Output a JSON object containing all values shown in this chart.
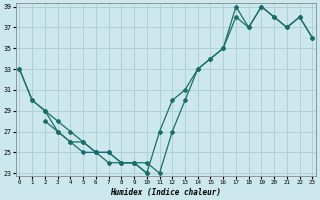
{
  "xlabel": "Humidex (Indice chaleur)",
  "bg_color": "#cce8ec",
  "grid_color": "#b0d0d8",
  "line_color": "#1a6e6a",
  "xlim": [
    0,
    23
  ],
  "ylim": [
    23,
    39
  ],
  "xticks": [
    0,
    1,
    2,
    3,
    4,
    5,
    6,
    7,
    8,
    9,
    10,
    11,
    12,
    13,
    14,
    15,
    16,
    17,
    18,
    19,
    20,
    21,
    22,
    23
  ],
  "yticks": [
    23,
    25,
    27,
    29,
    31,
    33,
    35,
    37,
    39
  ],
  "series": [
    {
      "x": [
        0,
        1,
        2,
        3,
        4,
        5,
        6,
        7,
        8,
        9,
        10
      ],
      "y": [
        33,
        30,
        29,
        27,
        26,
        25,
        25,
        24,
        24,
        24,
        23
      ]
    },
    {
      "x": [
        0,
        1,
        2,
        3,
        4,
        5,
        6,
        7,
        8,
        9,
        10,
        11,
        12,
        13,
        14,
        15,
        16,
        17,
        18,
        19,
        20,
        21,
        22,
        23
      ],
      "y": [
        33,
        30,
        29,
        28,
        27,
        26,
        25,
        25,
        24,
        24,
        23,
        27,
        30,
        31,
        33,
        34,
        35,
        38,
        37,
        39,
        38,
        37,
        38,
        36
      ]
    },
    {
      "x": [
        2,
        3,
        4,
        5,
        6,
        7,
        8,
        9,
        10,
        11,
        12,
        13,
        14,
        15,
        16,
        17,
        18,
        19,
        20,
        21,
        22,
        23
      ],
      "y": [
        28,
        27,
        26,
        26,
        25,
        25,
        24,
        24,
        24,
        23,
        27,
        30,
        33,
        34,
        35,
        39,
        37,
        39,
        38,
        37,
        38,
        36
      ]
    }
  ]
}
